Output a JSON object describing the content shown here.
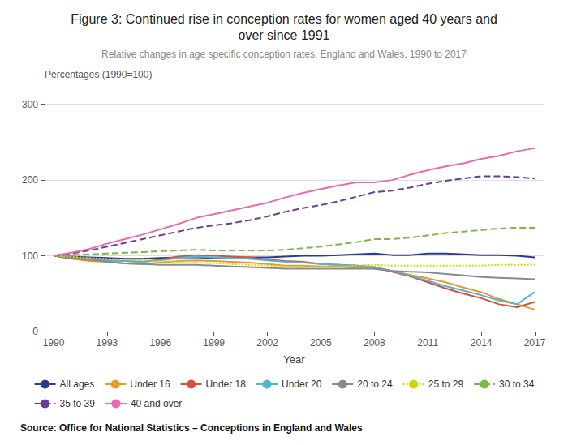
{
  "chart_data": {
    "type": "line",
    "title": "Figure 3: Continued rise in conception rates for women aged 40 years and\nover since 1991",
    "subtitle": "Relative changes in age specific conception rates, England and Wales, 1990 to 2017",
    "y_label": "Percentages (1990=100)",
    "x_label": "Year",
    "source": "Source: Office for National Statistics – Conceptions in England and Wales",
    "x": [
      1990,
      1991,
      1992,
      1993,
      1994,
      1995,
      1996,
      1997,
      1998,
      1999,
      2000,
      2001,
      2002,
      2003,
      2004,
      2005,
      2006,
      2007,
      2008,
      2009,
      2010,
      2011,
      2012,
      2013,
      2014,
      2015,
      2016,
      2017
    ],
    "series": [
      {
        "name": "All ages",
        "color": "#2b3a8f",
        "line_style": "solid",
        "values": [
          100,
          99,
          98,
          97,
          96,
          96,
          97,
          98,
          98,
          97,
          97,
          98,
          98,
          99,
          100,
          100,
          101,
          102,
          103,
          101,
          101,
          103,
          103,
          102,
          101,
          101,
          100,
          98
        ]
      },
      {
        "name": "Under 16",
        "color": "#e89b2a",
        "line_style": "solid",
        "values": [
          100,
          96,
          93,
          92,
          90,
          89,
          91,
          93,
          94,
          93,
          92,
          91,
          89,
          87,
          87,
          86,
          86,
          84,
          83,
          80,
          75,
          70,
          65,
          58,
          52,
          43,
          36,
          29
        ]
      },
      {
        "name": "Under 18",
        "color": "#d94f3d",
        "line_style": "solid",
        "values": [
          100,
          97,
          95,
          94,
          93,
          92,
          95,
          99,
          101,
          100,
          99,
          98,
          95,
          93,
          92,
          89,
          88,
          87,
          85,
          79,
          73,
          65,
          57,
          50,
          44,
          36,
          32,
          39
        ]
      },
      {
        "name": "Under 20",
        "color": "#4eb8d4",
        "line_style": "solid",
        "values": [
          100,
          98,
          96,
          94,
          93,
          92,
          94,
          97,
          99,
          98,
          97,
          96,
          94,
          92,
          91,
          89,
          88,
          87,
          85,
          80,
          74,
          67,
          60,
          54,
          48,
          41,
          36,
          52
        ]
      },
      {
        "name": "20 to 24",
        "color": "#8a8a8a",
        "line_style": "solid",
        "values": [
          100,
          98,
          95,
          92,
          90,
          89,
          88,
          88,
          88,
          87,
          86,
          85,
          84,
          83,
          83,
          83,
          83,
          83,
          83,
          80,
          79,
          78,
          76,
          74,
          72,
          71,
          70,
          69
        ]
      },
      {
        "name": "25 to 29",
        "color": "#d4d400",
        "line_style": "dotted",
        "values": [
          100,
          99,
          97,
          96,
          95,
          94,
          93,
          92,
          91,
          90,
          89,
          88,
          87,
          86,
          86,
          86,
          86,
          87,
          88,
          87,
          87,
          87,
          87,
          87,
          87,
          88,
          88,
          88
        ]
      },
      {
        "name": "30 to 34",
        "color": "#7db843",
        "line_style": "dashed",
        "values": [
          100,
          101,
          102,
          103,
          104,
          105,
          106,
          107,
          108,
          107,
          107,
          107,
          107,
          108,
          110,
          112,
          115,
          118,
          122,
          122,
          124,
          127,
          130,
          132,
          134,
          136,
          137,
          137
        ]
      },
      {
        "name": "35 to 39",
        "color": "#6a3d9a",
        "line_style": "dashed",
        "values": [
          100,
          103,
          107,
          112,
          117,
          122,
          127,
          132,
          137,
          140,
          143,
          147,
          152,
          158,
          163,
          167,
          172,
          178,
          184,
          186,
          190,
          195,
          199,
          202,
          205,
          205,
          204,
          202
        ]
      },
      {
        "name": "40 and over",
        "color": "#e86bab",
        "line_style": "solid",
        "values": [
          100,
          104,
          109,
          116,
          122,
          128,
          135,
          142,
          150,
          155,
          160,
          165,
          170,
          177,
          183,
          188,
          193,
          197,
          197,
          200,
          207,
          213,
          218,
          222,
          228,
          232,
          238,
          242
        ]
      }
    ],
    "xlim": [
      1989.5,
      2017.5
    ],
    "xticks": [
      1990,
      1993,
      1996,
      1999,
      2002,
      2005,
      2008,
      2011,
      2014,
      2017
    ],
    "ylim": [
      0,
      320
    ],
    "yticks": [
      0,
      100,
      200,
      300
    ],
    "grid": true,
    "legend": "bottom"
  }
}
